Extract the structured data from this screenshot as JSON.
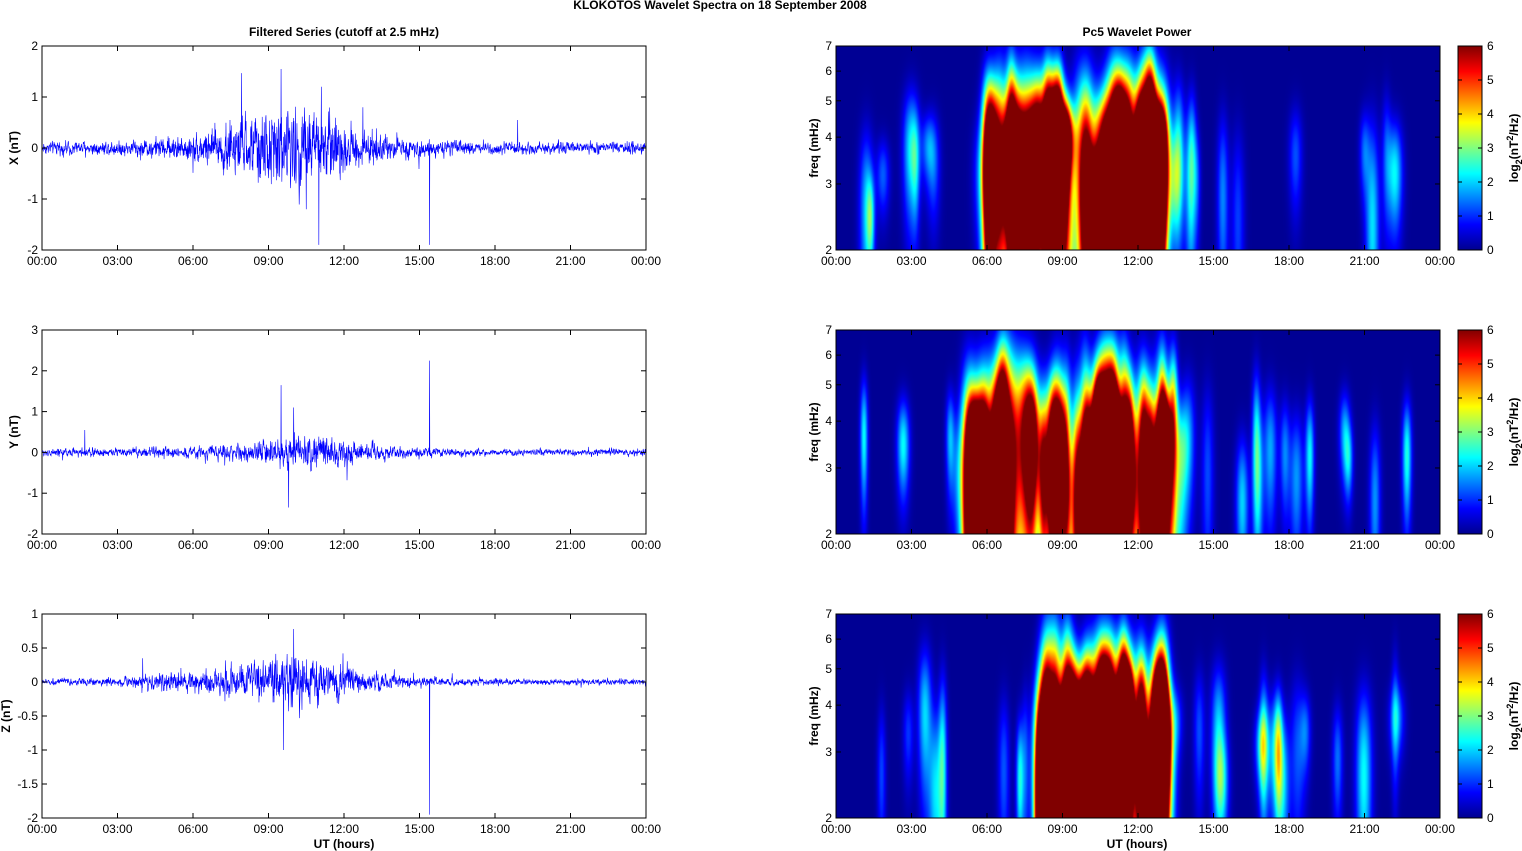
{
  "figure": {
    "title": "KLOKOTOS Wavelet Spectra on 18 September 2008",
    "left_title": "Filtered Series (cutoff at 2.5 mHz)",
    "right_title": "Pc5 Wavelet Power",
    "xlabel": "UT (hours)",
    "freq_label": "freq (mHz)",
    "colorbar_label_main": "log",
    "colorbar_label_sub": "2",
    "colorbar_label_paren": "(nT",
    "colorbar_label_sup": "2",
    "colorbar_label_tail": "/Hz)"
  },
  "colors": {
    "series_line": "#0000ff",
    "spectrum_background": "#00008f",
    "colormap": "jet"
  },
  "chart_data": [
    {
      "type": "line",
      "panel": "series-x",
      "ylabel": "X (nT)",
      "xlim": [
        0,
        24
      ],
      "ylim": [
        -2,
        2
      ],
      "xticks": [
        "00:00",
        "03:00",
        "06:00",
        "09:00",
        "12:00",
        "15:00",
        "18:00",
        "21:00",
        "00:00"
      ],
      "yticks": [
        "-2",
        "-1",
        "0",
        "1",
        "2"
      ],
      "ytick_values": [
        -2,
        -1,
        0,
        1,
        2
      ],
      "envelope": {
        "hours": [
          0,
          3,
          6,
          7,
          8,
          9,
          10,
          11,
          12,
          13,
          14,
          15,
          16,
          18,
          21,
          24
        ],
        "amplitude": [
          0.12,
          0.14,
          0.25,
          0.45,
          0.6,
          0.7,
          0.8,
          0.75,
          0.5,
          0.3,
          0.2,
          0.18,
          0.14,
          0.12,
          0.11,
          0.12
        ]
      },
      "spikes": [
        {
          "hour": 9.5,
          "value": 1.55
        },
        {
          "hour": 11.0,
          "value": -1.9
        },
        {
          "hour": 11.1,
          "value": 1.2
        },
        {
          "hour": 15.4,
          "value": -1.9
        },
        {
          "hour": 10.5,
          "value": -1.2
        },
        {
          "hour": 18.9,
          "value": 0.55
        }
      ]
    },
    {
      "type": "line",
      "panel": "series-y",
      "ylabel": "Y (nT)",
      "xlim": [
        0,
        24
      ],
      "ylim": [
        -2,
        3
      ],
      "xticks": [
        "00:00",
        "03:00",
        "06:00",
        "09:00",
        "12:00",
        "15:00",
        "18:00",
        "21:00",
        "00:00"
      ],
      "yticks": [
        "-2",
        "-1",
        "0",
        "1",
        "2",
        "3"
      ],
      "ytick_values": [
        -2,
        -1,
        0,
        1,
        2,
        3
      ],
      "envelope": {
        "hours": [
          0,
          1.7,
          3,
          6,
          8,
          9.5,
          10,
          11,
          12,
          13,
          14,
          15,
          16,
          18,
          21,
          24
        ],
        "amplitude": [
          0.08,
          0.12,
          0.1,
          0.14,
          0.2,
          0.35,
          0.45,
          0.4,
          0.3,
          0.22,
          0.15,
          0.12,
          0.1,
          0.08,
          0.07,
          0.09
        ]
      },
      "spikes": [
        {
          "hour": 9.5,
          "value": 1.65
        },
        {
          "hour": 15.4,
          "value": 2.25
        },
        {
          "hour": 9.8,
          "value": -1.35
        },
        {
          "hour": 10.0,
          "value": 1.1
        },
        {
          "hour": 1.7,
          "value": 0.55
        }
      ]
    },
    {
      "type": "line",
      "panel": "series-z",
      "ylabel": "Z (nT)",
      "xlabel": "UT (hours)",
      "xlim": [
        0,
        24
      ],
      "ylim": [
        -2,
        1
      ],
      "xticks": [
        "00:00",
        "03:00",
        "06:00",
        "09:00",
        "12:00",
        "15:00",
        "18:00",
        "21:00",
        "00:00"
      ],
      "yticks": [
        "-2",
        "-1.5",
        "-1",
        "-0.5",
        "0",
        "0.5",
        "1"
      ],
      "ytick_values": [
        -2,
        -1.5,
        -1,
        -0.5,
        0,
        0.5,
        1
      ],
      "envelope": {
        "hours": [
          0,
          3,
          4,
          6,
          8,
          9,
          10,
          11,
          12,
          13,
          14,
          15,
          16,
          18,
          21,
          24
        ],
        "amplitude": [
          0.04,
          0.06,
          0.1,
          0.15,
          0.25,
          0.32,
          0.38,
          0.33,
          0.25,
          0.16,
          0.1,
          0.08,
          0.06,
          0.05,
          0.04,
          0.05
        ]
      },
      "spikes": [
        {
          "hour": 10.0,
          "value": 0.78
        },
        {
          "hour": 15.4,
          "value": -1.95
        },
        {
          "hour": 9.6,
          "value": -1.0
        },
        {
          "hour": 4.0,
          "value": 0.35
        }
      ]
    },
    {
      "type": "heatmap",
      "panel": "spectrum-x",
      "ylabel": "freq (mHz)",
      "xlim": [
        0,
        24
      ],
      "ylim": [
        2,
        7
      ],
      "yscale": "log",
      "xticks": [
        "00:00",
        "03:00",
        "06:00",
        "09:00",
        "12:00",
        "15:00",
        "18:00",
        "21:00",
        "00:00"
      ],
      "yticks": [
        "2",
        "3",
        "4",
        "5",
        "6",
        "7"
      ],
      "ytick_values": [
        2,
        3,
        4,
        5,
        6,
        7
      ],
      "clim": [
        0,
        6
      ],
      "colorbar_ticks": [
        "0",
        "1",
        "2",
        "3",
        "4",
        "5",
        "6"
      ],
      "active_window_hours": [
        6.0,
        13.0
      ],
      "peak_hours": [
        7.5,
        10.3,
        11.5,
        12.3
      ],
      "peak_power": 5.8
    },
    {
      "type": "heatmap",
      "panel": "spectrum-y",
      "ylabel": "freq (mHz)",
      "xlim": [
        0,
        24
      ],
      "ylim": [
        2,
        7
      ],
      "yscale": "log",
      "xticks": [
        "00:00",
        "03:00",
        "06:00",
        "09:00",
        "12:00",
        "15:00",
        "18:00",
        "21:00",
        "00:00"
      ],
      "yticks": [
        "2",
        "3",
        "4",
        "5",
        "6",
        "7"
      ],
      "ytick_values": [
        2,
        3,
        4,
        5,
        6,
        7
      ],
      "clim": [
        0,
        6
      ],
      "colorbar_ticks": [
        "0",
        "1",
        "2",
        "3",
        "4",
        "5",
        "6"
      ],
      "active_window_hours": [
        5.0,
        14.0
      ],
      "peak_hours": [
        6.0,
        10.5,
        11.0
      ],
      "peak_power": 5.5
    },
    {
      "type": "heatmap",
      "panel": "spectrum-z",
      "ylabel": "freq (mHz)",
      "xlabel": "UT (hours)",
      "xlim": [
        0,
        24
      ],
      "ylim": [
        2,
        7
      ],
      "yscale": "log",
      "xticks": [
        "00:00",
        "03:00",
        "06:00",
        "09:00",
        "12:00",
        "15:00",
        "18:00",
        "21:00",
        "00:00"
      ],
      "yticks": [
        "2",
        "3",
        "4",
        "5",
        "6",
        "7"
      ],
      "ytick_values": [
        2,
        3,
        4,
        5,
        6,
        7
      ],
      "clim": [
        0,
        6
      ],
      "colorbar_ticks": [
        "0",
        "1",
        "2",
        "3",
        "4",
        "5",
        "6"
      ],
      "active_window_hours": [
        8.0,
        13.0
      ],
      "peak_hours": [
        9.7,
        10.5
      ],
      "peak_power": 5.2
    }
  ]
}
